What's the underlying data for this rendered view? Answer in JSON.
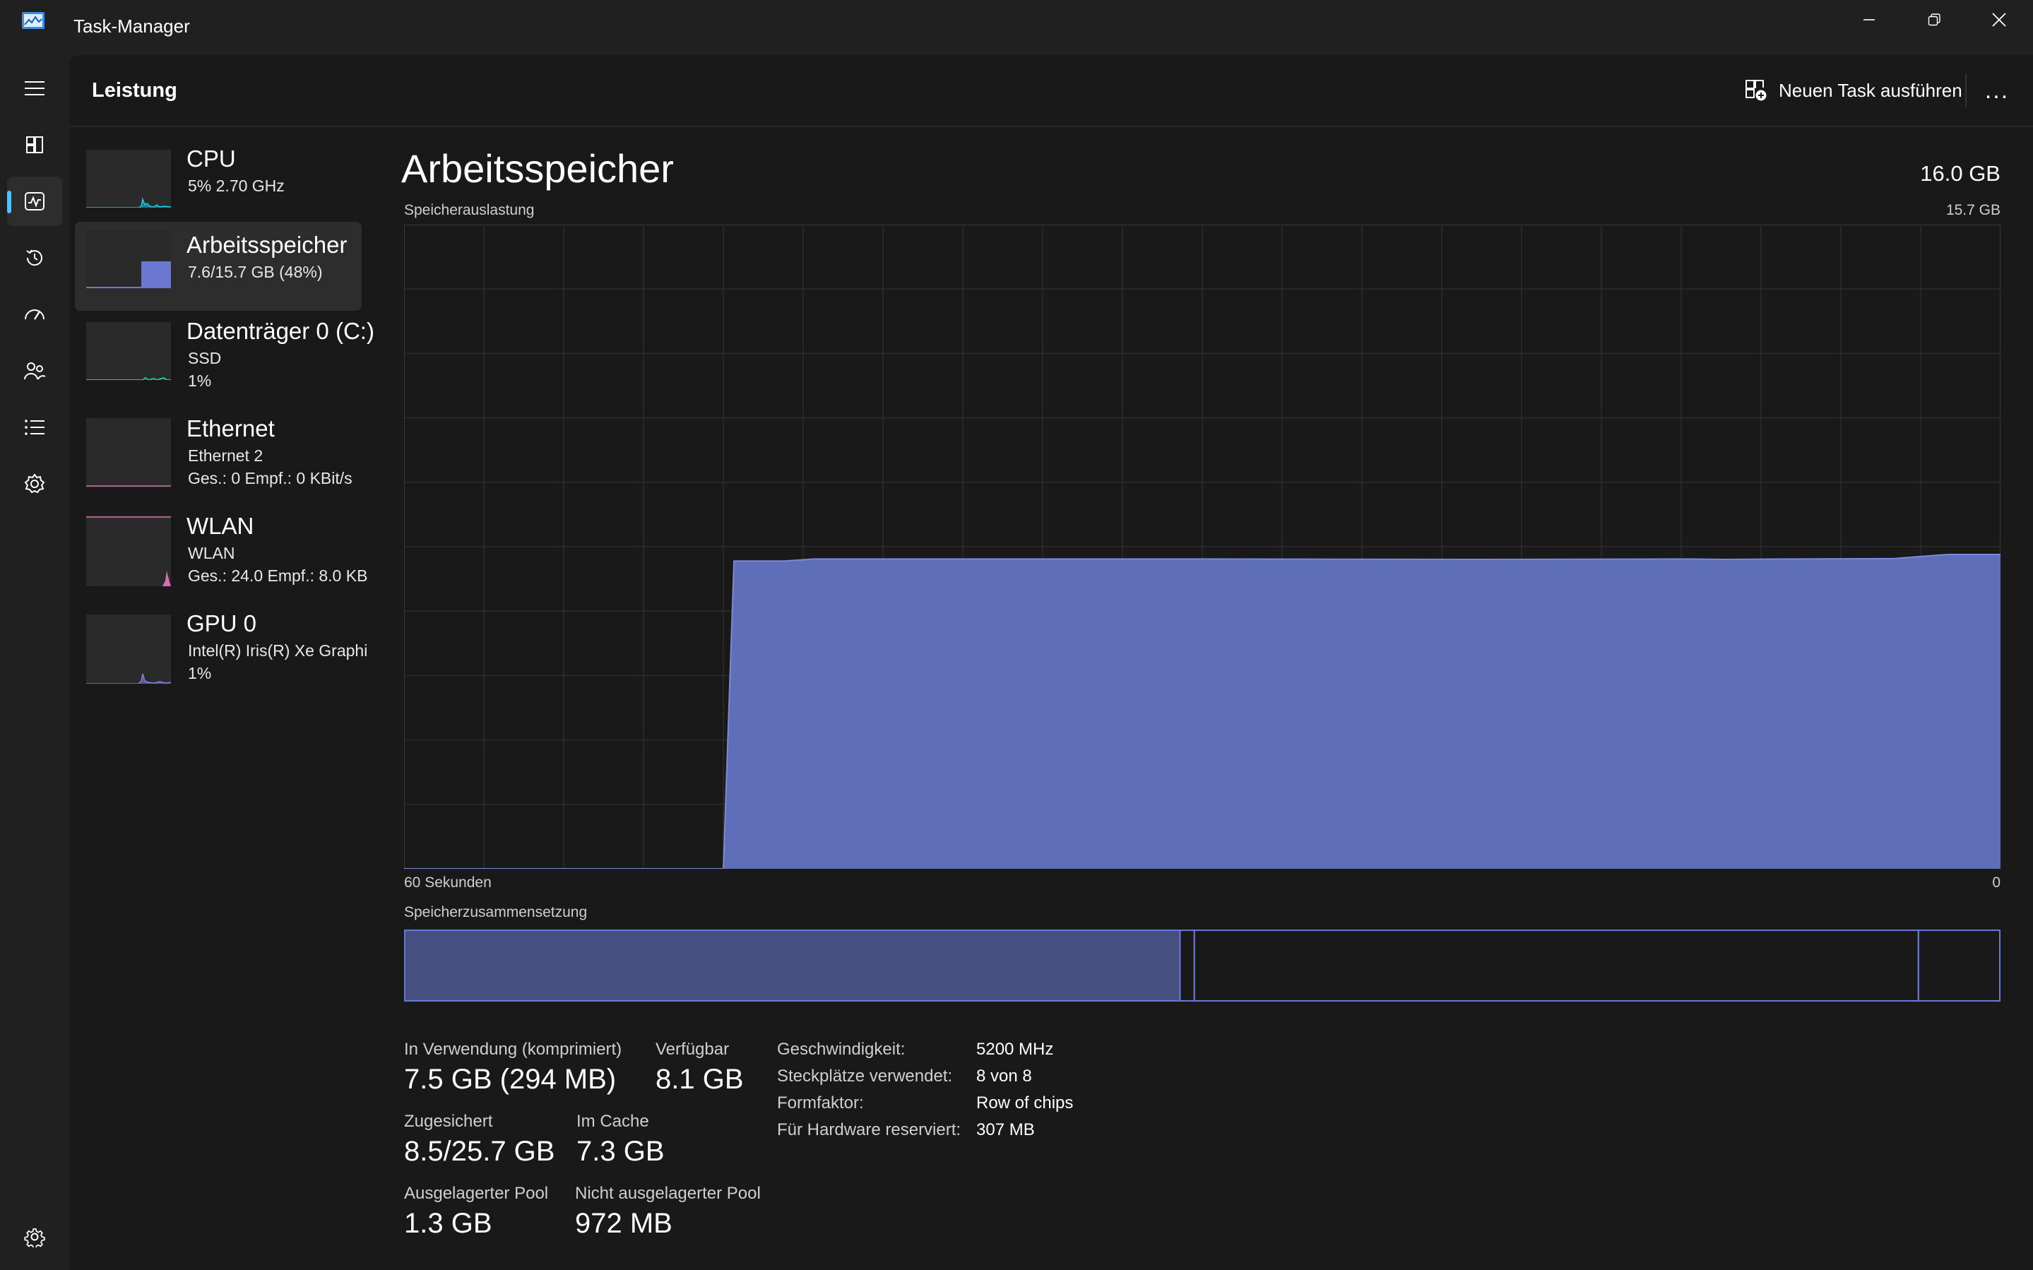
{
  "app": {
    "title": "Task-Manager"
  },
  "header": {
    "title": "Leistung",
    "run_task_label": "Neuen Task ausführen",
    "more_label": "..."
  },
  "nav": [
    {
      "name": "hamburger-icon"
    },
    {
      "name": "processes-icon"
    },
    {
      "name": "performance-icon",
      "active": true
    },
    {
      "name": "app-history-icon"
    },
    {
      "name": "startup-apps-icon"
    },
    {
      "name": "users-icon"
    },
    {
      "name": "details-icon"
    },
    {
      "name": "services-icon"
    },
    {
      "name": "settings-icon"
    }
  ],
  "devices": [
    {
      "name": "CPU",
      "line1": "5%  2.70 GHz",
      "line2": "",
      "color": "#1ec8e8"
    },
    {
      "name": "Arbeitsspeicher",
      "line1": "7.6/15.7 GB (48%)",
      "line2": "",
      "color": "#6a78d1",
      "selected": true
    },
    {
      "name": "Datenträger 0 (C:)",
      "line1": "SSD",
      "line2": "1%",
      "color": "#1ec8a0"
    },
    {
      "name": "Ethernet",
      "line1": "Ethernet 2",
      "line2": "Ges.: 0  Empf.: 0 KBit/s",
      "color": "#d96fb0"
    },
    {
      "name": "WLAN",
      "line1": "WLAN",
      "line2": "Ges.: 24.0  Empf.: 8.0 KB",
      "color": "#d96fb0"
    },
    {
      "name": "GPU 0",
      "line1": "Intel(R) Iris(R) Xe Graphi",
      "line2": "1%",
      "color": "#7b7fe0"
    }
  ],
  "detail": {
    "title": "Arbeitsspeicher",
    "total": "16.0 GB",
    "usage_label": "Speicherauslastung",
    "usage_max": "15.7 GB",
    "time_left": "60 Sekunden",
    "time_right": "0",
    "composition_label": "Speicherzusammensetzung"
  },
  "chart_data": {
    "type": "area",
    "title": "Speicherauslastung",
    "x": [
      60,
      48,
      47.6,
      45.7,
      44.6,
      30,
      20,
      11.7,
      10.4,
      8,
      4,
      2,
      0
    ],
    "values": [
      0,
      0,
      7.5,
      7.5,
      7.55,
      7.55,
      7.54,
      7.55,
      7.54,
      7.55,
      7.56,
      7.66,
      7.66
    ],
    "xlabel": "60 Sekunden",
    "xlim": [
      60,
      0
    ],
    "ylim": [
      0,
      15.7
    ],
    "grid": true,
    "color": "#6a78d1"
  },
  "composition": {
    "in_use_fraction": 0.486,
    "modified_fraction": 0.009,
    "standby_fraction": 0.454,
    "free_fraction": 0.061
  },
  "stats": {
    "in_use_label": "In Verwendung (komprimiert)",
    "in_use_value": "7.5 GB (294 MB)",
    "available_label": "Verfügbar",
    "available_value": "8.1 GB",
    "committed_label": "Zugesichert",
    "committed_value": "8.5/25.7 GB",
    "cached_label": "Im Cache",
    "cached_value": "7.3 GB",
    "paged_label": "Ausgelagerter Pool",
    "paged_value": "1.3 GB",
    "nonpaged_label": "Nicht ausgelagerter Pool",
    "nonpaged_value": "972 MB"
  },
  "specs": [
    {
      "key": "Geschwindigkeit:",
      "value": "5200 MHz"
    },
    {
      "key": "Steckplätze verwendet:",
      "value": "8 von 8"
    },
    {
      "key": "Formfaktor:",
      "value": "Row of chips"
    },
    {
      "key": "Für Hardware reserviert:",
      "value": "307 MB"
    }
  ]
}
